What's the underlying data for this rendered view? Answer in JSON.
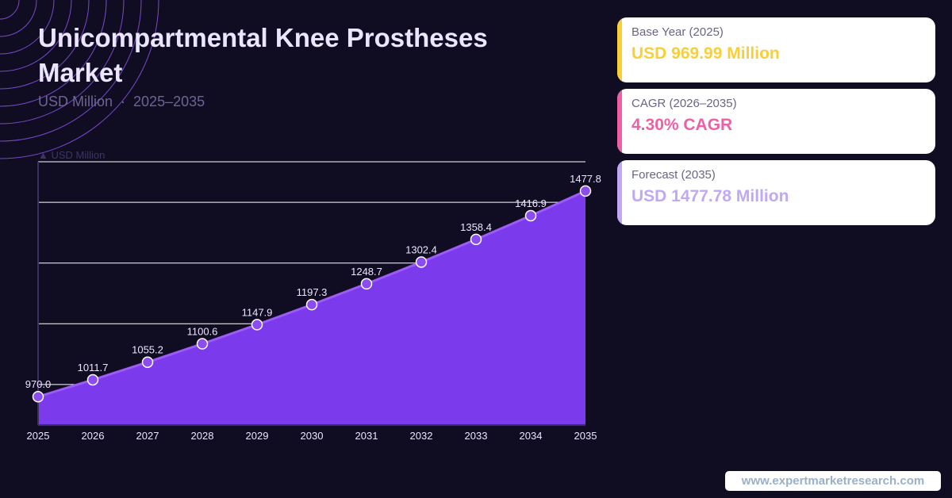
{
  "title": "Unicompartmental Knee Prostheses Market",
  "subtitle": {
    "unit": "USD Million",
    "separator": "·",
    "period": "2025–2035"
  },
  "chart_data": {
    "type": "area",
    "x": [
      "2025",
      "2026",
      "2027",
      "2028",
      "2029",
      "2030",
      "2031",
      "2032",
      "2033",
      "2034",
      "2035"
    ],
    "series": [
      {
        "values": [
          970.0,
          1011.7,
          1055.2,
          1100.6,
          1147.9,
          1197.3,
          1248.7,
          1302.4,
          1358.4,
          1416.9,
          1477.8
        ],
        "labels": [
          "970.0",
          "1011.7",
          "1055.2",
          "1100.6",
          "1147.9",
          "1197.3",
          "1248.7",
          "1302.4",
          "1358.4",
          "1416.9",
          "1477.8"
        ]
      }
    ],
    "ylabel": "▲ USD Million",
    "ylim": [
      900,
      1550
    ],
    "gridlines_y": [
      1000,
      1150,
      1300,
      1450
    ],
    "grid": true,
    "colors": {
      "fill": "#7c3aed",
      "line": "#9d5cf5",
      "marker": "#8b4cf0",
      "marker_stroke": "#ffffff",
      "grid": "#ffffff"
    }
  },
  "cards": [
    {
      "label": "Base Year (2025)",
      "value": "USD 969.99 Million",
      "accent": "#f9cf38"
    },
    {
      "label": "CAGR (2026–2035)",
      "value": "4.30% CAGR",
      "accent": "#ee5fa6"
    },
    {
      "label": "Forecast (2035)",
      "value": "USD 1477.78 Million",
      "accent": "#c0a8f4"
    }
  ],
  "source": "www.expertmarketresearch.com"
}
